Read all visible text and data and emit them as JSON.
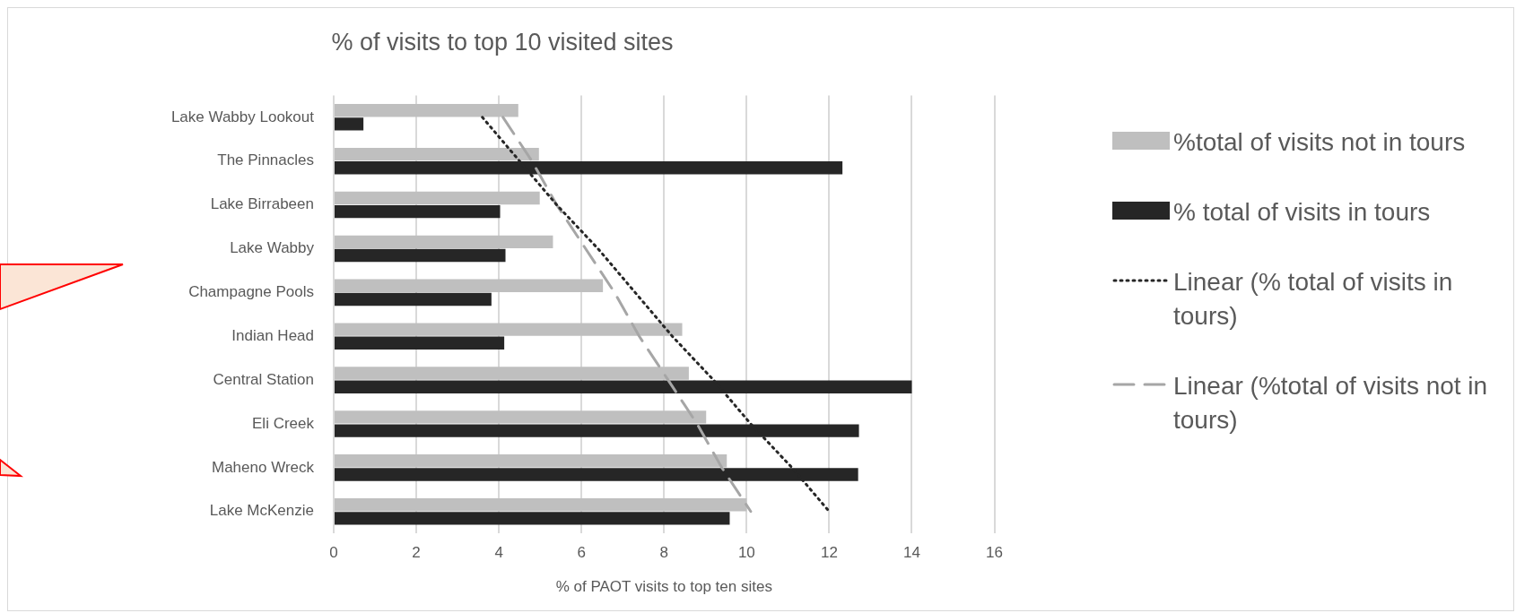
{
  "chart_data": {
    "type": "bar",
    "orientation": "horizontal",
    "title": "% of visits to top 10 visited sites",
    "xlabel": "% of PAOT visits to top ten sites",
    "categories": [
      "Lake Wabby Lookout",
      "The Pinnacles",
      "Lake Birrabeen",
      "Lake Wabby",
      "Champagne Pools",
      "Indian Head",
      "Central Station",
      "Eli Creek",
      "Maheno Wreck",
      "Lake McKenzie"
    ],
    "series": [
      {
        "name": "%total of visits not in tours",
        "color": "#bfbfbf",
        "values": [
          4.47,
          4.97,
          4.99,
          5.31,
          6.52,
          8.44,
          8.6,
          9.02,
          9.52,
          10.0
        ]
      },
      {
        "name": "% total of visits in tours",
        "color": "#262626",
        "values": [
          0.72,
          12.32,
          4.03,
          4.16,
          3.82,
          4.13,
          14.0,
          12.72,
          12.7,
          9.59
        ]
      },
      {
        "type": "line",
        "name": "Linear (% total of visits in tours)",
        "color": "#262626",
        "line_style": "dotted",
        "values": [
          3.6,
          4.5,
          5.4,
          6.4,
          7.3,
          8.2,
          9.2,
          10.1,
          11.1,
          12.0
        ]
      },
      {
        "type": "line",
        "name": "Linear (%total of visits not in tours)",
        "color": "#a6a6a6",
        "line_style": "dashed",
        "values": [
          4.1,
          4.8,
          5.4,
          6.1,
          6.8,
          7.4,
          8.1,
          8.8,
          9.4,
          10.1
        ]
      }
    ],
    "xlim": [
      0,
      16
    ],
    "xticks": [
      0,
      2,
      4,
      6,
      8,
      10,
      12,
      14,
      16
    ],
    "grid": "x",
    "legend": "right",
    "marker": "none"
  }
}
